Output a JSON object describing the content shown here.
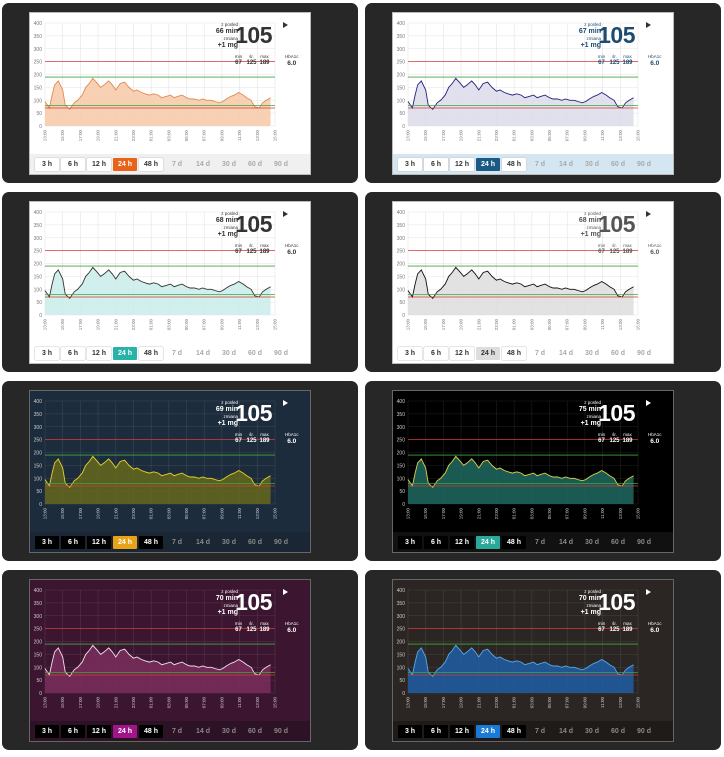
{
  "widgets": [
    {
      "theme": "light",
      "minutes_ago": "66 min",
      "active_color": "#e8621a",
      "bg": "#ffffff",
      "bar": "#f0f0f0",
      "fill": "#f7c9a8",
      "line": "#e08a50",
      "text": "#333333"
    },
    {
      "theme": "light",
      "minutes_ago": "67 min",
      "active_color": "#1c5a86",
      "bg": "#ffffff",
      "bar": "#d3e6f2",
      "fill": "#dcdcea",
      "line": "#22227a",
      "text": "#1c4a70"
    },
    {
      "theme": "light",
      "minutes_ago": "68 min",
      "active_color": "#27b3a8",
      "bg": "#ffffff",
      "bar": "#ffffff",
      "fill": "#c9ece9",
      "line": "#333333",
      "text": "#333333"
    },
    {
      "theme": "light",
      "minutes_ago": "68 min",
      "active_color": "#dddddd",
      "bg": "#ffffff",
      "bar": "#ffffff",
      "fill": "#dddddd",
      "line": "#111111",
      "text": "#555555"
    },
    {
      "theme": "dark",
      "minutes_ago": "69 min",
      "active_color": "#e8a317",
      "bg": "#1d2c3c",
      "bar": "#1a2633",
      "fill": "#65681c",
      "line": "#e5d22c",
      "text": "#ffffff"
    },
    {
      "theme": "dark",
      "minutes_ago": "75 min",
      "active_color": "#2aa89a",
      "bg": "#000000",
      "bar": "#111111",
      "fill": "#1f6a60",
      "line": "#e0d24a",
      "text": "#ffffff"
    },
    {
      "theme": "dark",
      "minutes_ago": "70 min",
      "active_color": "#a0168a",
      "bg": "#3c1630",
      "bar": "#2d1124",
      "fill": "#7a2e5c",
      "line": "#f0e0ec",
      "text": "#ffffff"
    },
    {
      "theme": "dark",
      "minutes_ago": "70 min",
      "active_color": "#1a7ad8",
      "bg": "#2b2624",
      "bar": "#1e1b19",
      "fill": "#1e5ea6",
      "line": "#58a8e6",
      "text": "#ffffff"
    }
  ],
  "labels": {
    "ago": "z posled",
    "change_label": "zmiana",
    "change_value": "+1 mg",
    "current": "105",
    "min_label": "min",
    "avg_label": "śr.",
    "max_label": "max",
    "min_value": "67",
    "avg_value": "125",
    "max_value": "189",
    "hba_label": "HbA1c",
    "hba_value": "6.0"
  },
  "time_buttons": [
    "3 h",
    "6 h",
    "12 h",
    "24 h",
    "48 h",
    "7 d",
    "14 d",
    "30 d",
    "60 d",
    "90 d"
  ],
  "active_button": "24 h",
  "chart_data": {
    "type": "area",
    "ylim": [
      0,
      400
    ],
    "yticks": [
      0,
      50,
      100,
      150,
      200,
      250,
      300,
      350,
      400
    ],
    "xticks": [
      "13:00",
      "15:00",
      "17:00",
      "19:00",
      "21:00",
      "23:00",
      "01:00",
      "03:00",
      "05:00",
      "07:00",
      "09:00",
      "11:00",
      "13:00",
      "15:00"
    ],
    "thresholds": {
      "high": 250,
      "target_high": 190,
      "target_low": 80,
      "low": 70
    },
    "series": [
      {
        "x": [
          0,
          0.5,
          0.8,
          1.1,
          1.5,
          2.0,
          2.3,
          2.8,
          3.3,
          3.7,
          4.2,
          4.6,
          5.0,
          5.4,
          5.8,
          6.3,
          6.7,
          7.2,
          7.6,
          8.0,
          8.5,
          9.0,
          9.5,
          10.0,
          10.4,
          10.9,
          11.3,
          11.8,
          12.3,
          12.8,
          13.2,
          13.7,
          14.2,
          14.6,
          15.0,
          15.5,
          16.0,
          16.4,
          16.9,
          17.4,
          17.8,
          18.3,
          18.8,
          19.2,
          19.7,
          20.1,
          20.5,
          21.0,
          21.4,
          21.9,
          22.4,
          22.8,
          23.3,
          23.7,
          24.2,
          24.6,
          25.0,
          25.5
        ],
        "values": [
          95,
          70,
          120,
          160,
          175,
          140,
          80,
          65,
          90,
          100,
          120,
          150,
          165,
          185,
          170,
          150,
          160,
          175,
          160,
          140,
          165,
          170,
          150,
          135,
          140,
          130,
          125,
          120,
          125,
          120,
          110,
          115,
          120,
          110,
          115,
          120,
          110,
          105,
          105,
          100,
          105,
          100,
          100,
          95,
          90,
          95,
          105,
          115,
          120,
          130,
          120,
          110,
          100,
          75,
          70,
          90,
          100,
          110
        ]
      }
    ]
  }
}
